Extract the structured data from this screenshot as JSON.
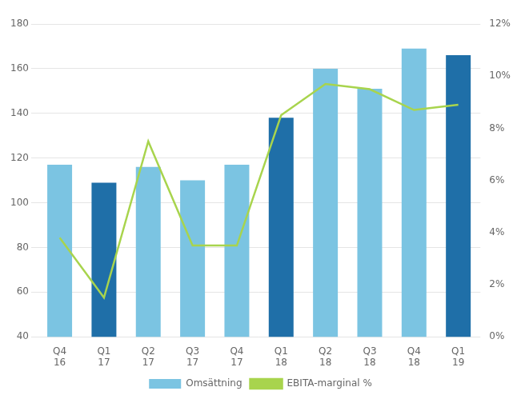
{
  "chart_data": {
    "type": "bar",
    "categories": [
      "Q4\n16",
      "Q1\n17",
      "Q2\n17",
      "Q3\n17",
      "Q4\n17",
      "Q1\n18",
      "Q2\n18",
      "Q3\n18",
      "Q4\n18",
      "Q1\n19"
    ],
    "series": [
      {
        "name": "Omsättning",
        "type": "bar",
        "colors": [
          "#7bc4e2",
          "#1f6fa8",
          "#7bc4e2",
          "#7bc4e2",
          "#7bc4e2",
          "#1f6fa8",
          "#7bc4e2",
          "#7bc4e2",
          "#7bc4e2",
          "#1f6fa8"
        ],
        "values": [
          117,
          109,
          116,
          110,
          117,
          138,
          160,
          151,
          169,
          166
        ]
      },
      {
        "name": "EBITA-marginal %",
        "type": "line",
        "color": "#a8d44d",
        "axis": "y2",
        "values": [
          3.8,
          1.5,
          7.5,
          3.5,
          3.5,
          8.5,
          9.7,
          9.5,
          8.7,
          8.9
        ]
      }
    ],
    "ylim": [
      40,
      180
    ],
    "yticks": [
      40,
      60,
      80,
      100,
      120,
      140,
      160,
      180
    ],
    "y2lim": [
      0,
      12
    ],
    "y2ticks": [
      {
        "value": 0,
        "label": "0%"
      },
      {
        "value": 2,
        "label": "2%"
      },
      {
        "value": 4,
        "label": "4%"
      },
      {
        "value": 6,
        "label": "6%"
      },
      {
        "value": 8,
        "label": "8%"
      },
      {
        "value": 10,
        "label": "10%"
      },
      {
        "value": 12,
        "label": "12%"
      }
    ],
    "grid": true,
    "legend": "bottom"
  }
}
